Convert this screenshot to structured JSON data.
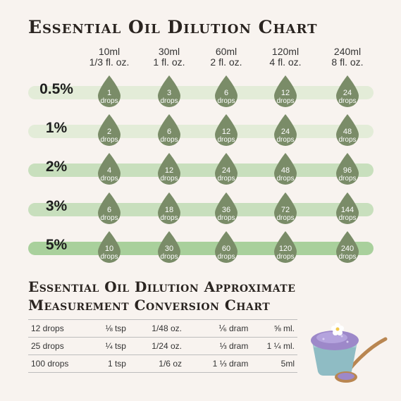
{
  "title": "Essential Oil Dilution Chart",
  "colors": {
    "drop": "#7a8c68",
    "bar_light": "#e3ecd8",
    "bar_mid": "#c8dfbd",
    "bar_dark": "#a9d09c",
    "background": "#f8f3ef"
  },
  "columns": [
    {
      "ml": "10ml",
      "oz": "1/3 fl. oz."
    },
    {
      "ml": "30ml",
      "oz": "1 fl. oz."
    },
    {
      "ml": "60ml",
      "oz": "2 fl. oz."
    },
    {
      "ml": "120ml",
      "oz": "4 fl. oz."
    },
    {
      "ml": "240ml",
      "oz": "8 fl. oz."
    }
  ],
  "rows": [
    {
      "pct": "0.5%",
      "drops": [
        "1",
        "3",
        "6",
        "12",
        "24"
      ]
    },
    {
      "pct": "1%",
      "drops": [
        "2",
        "6",
        "12",
        "24",
        "48"
      ]
    },
    {
      "pct": "2%",
      "drops": [
        "4",
        "12",
        "24",
        "48",
        "96"
      ]
    },
    {
      "pct": "3%",
      "drops": [
        "6",
        "18",
        "36",
        "72",
        "144"
      ]
    },
    {
      "pct": "5%",
      "drops": [
        "10",
        "30",
        "60",
        "120",
        "240"
      ]
    }
  ],
  "drop_unit": "drops",
  "conversion": {
    "title_line1": "Essential Oil Dilution Approximate",
    "title_line2": "Measurement Conversion Chart",
    "rows": [
      [
        "12 drops",
        "⅛ tsp",
        "1/48 oz.",
        "⅙ dram",
        "⅝ ml."
      ],
      [
        "25 drops",
        "¼ tsp",
        "1/24 oz.",
        "⅓ dram",
        "1 ¼ ml."
      ],
      [
        "100 drops",
        "1 tsp",
        "1/6 oz",
        "1 ⅓ dram",
        "5ml"
      ]
    ]
  },
  "illustration": "bowl-of-lavender-salt-with-spoon-icon"
}
